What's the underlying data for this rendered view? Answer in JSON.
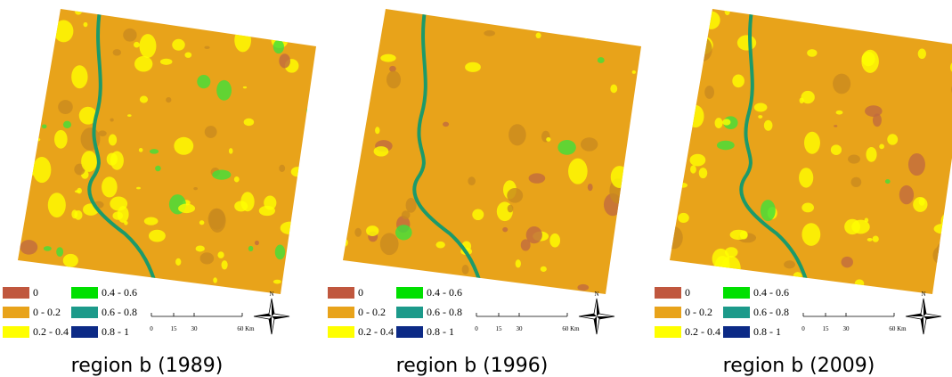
{
  "legend": [
    {
      "label": "0",
      "color": "#c0573e"
    },
    {
      "label": "0 - 0.2",
      "color": "#e8a31a"
    },
    {
      "label": "0.2 - 0.4",
      "color": "#ffff00"
    },
    {
      "label": "0.4 - 0.6",
      "color": "#00e000"
    },
    {
      "label": "0.6 - 0.8",
      "color": "#1c9a8a"
    },
    {
      "label": "0.8 - 1",
      "color": "#0c2a86"
    }
  ],
  "scale_bar": [
    "0",
    "15",
    "30",
    "60 Km"
  ],
  "north": "N",
  "panels": [
    {
      "caption": "region b (1989)"
    },
    {
      "caption": "region b (1996)"
    },
    {
      "caption": "region b (2009)"
    }
  ]
}
